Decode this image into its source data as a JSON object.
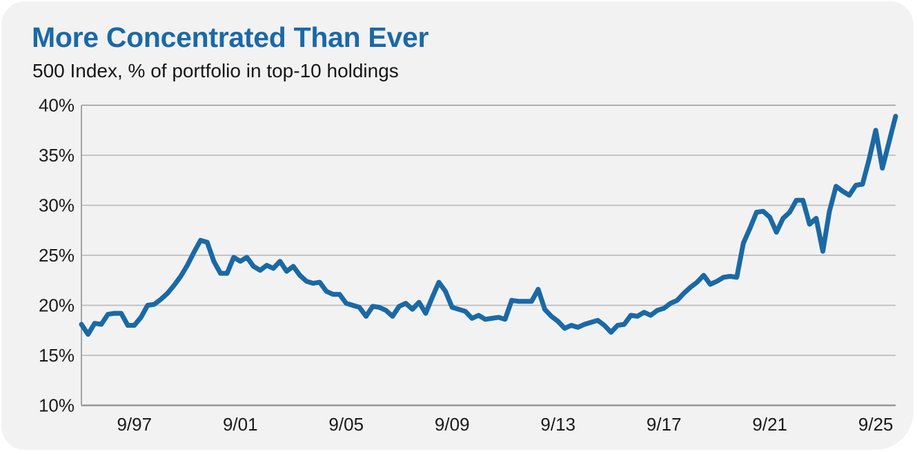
{
  "page": {
    "background": "#ffffff",
    "card_background": "#f2f2f3"
  },
  "chart_data": {
    "type": "line",
    "title": "More Concentrated Than Ever",
    "subtitle": "500 Index, % of portfolio in top-10 holdings",
    "title_color": "#1a69a5",
    "line_color": "#1a69a5",
    "grid_color": "#b5b5b8",
    "axis_color": "#97979a",
    "border_color": "#a3a3a6",
    "label_color": "#1a1a1a",
    "grid": "horizontal",
    "legend": "none",
    "line_width": 7,
    "ylim": [
      10,
      40
    ],
    "yticks": [
      {
        "value": 40,
        "label": "40%"
      },
      {
        "value": 35,
        "label": "35%"
      },
      {
        "value": 30,
        "label": "30%"
      },
      {
        "value": 25,
        "label": "25%"
      },
      {
        "value": 20,
        "label": "20%"
      },
      {
        "value": 15,
        "label": "15%"
      },
      {
        "value": 10,
        "label": "10%"
      }
    ],
    "xlim": [
      1995.75,
      2026.5
    ],
    "xticks": [
      {
        "year": 1997.75,
        "label": "9/97"
      },
      {
        "year": 2001.75,
        "label": "9/01"
      },
      {
        "year": 2005.75,
        "label": "9/05"
      },
      {
        "year": 2009.75,
        "label": "9/09"
      },
      {
        "year": 2013.75,
        "label": "9/13"
      },
      {
        "year": 2017.75,
        "label": "9/17"
      },
      {
        "year": 2021.75,
        "label": "9/21"
      },
      {
        "year": 2025.75,
        "label": "9/25"
      }
    ],
    "series": [
      {
        "name": "% of portfolio in top-10 holdings",
        "frequency": "quarterly",
        "points": [
          [
            1995.75,
            18.1
          ],
          [
            1996.0,
            17.1
          ],
          [
            1996.25,
            18.2
          ],
          [
            1996.5,
            18.1
          ],
          [
            1996.75,
            19.1
          ],
          [
            1997.0,
            19.2
          ],
          [
            1997.25,
            19.2
          ],
          [
            1997.5,
            18.0
          ],
          [
            1997.75,
            18.0
          ],
          [
            1998.0,
            18.8
          ],
          [
            1998.25,
            20.0
          ],
          [
            1998.5,
            20.1
          ],
          [
            1998.75,
            20.6
          ],
          [
            1999.0,
            21.2
          ],
          [
            1999.25,
            22.0
          ],
          [
            1999.5,
            22.9
          ],
          [
            1999.75,
            24.0
          ],
          [
            2000.0,
            25.3
          ],
          [
            2000.25,
            26.5
          ],
          [
            2000.5,
            26.3
          ],
          [
            2000.75,
            24.4
          ],
          [
            2001.0,
            23.2
          ],
          [
            2001.25,
            23.2
          ],
          [
            2001.5,
            24.8
          ],
          [
            2001.75,
            24.4
          ],
          [
            2002.0,
            24.8
          ],
          [
            2002.25,
            23.9
          ],
          [
            2002.5,
            23.5
          ],
          [
            2002.75,
            24.0
          ],
          [
            2003.0,
            23.7
          ],
          [
            2003.25,
            24.4
          ],
          [
            2003.5,
            23.4
          ],
          [
            2003.75,
            23.9
          ],
          [
            2004.0,
            23.0
          ],
          [
            2004.25,
            22.4
          ],
          [
            2004.5,
            22.2
          ],
          [
            2004.75,
            22.3
          ],
          [
            2005.0,
            21.4
          ],
          [
            2005.25,
            21.1
          ],
          [
            2005.5,
            21.1
          ],
          [
            2005.75,
            20.2
          ],
          [
            2006.0,
            20.0
          ],
          [
            2006.25,
            19.8
          ],
          [
            2006.5,
            18.9
          ],
          [
            2006.75,
            19.9
          ],
          [
            2007.0,
            19.8
          ],
          [
            2007.25,
            19.5
          ],
          [
            2007.5,
            18.9
          ],
          [
            2007.75,
            19.9
          ],
          [
            2008.0,
            20.2
          ],
          [
            2008.25,
            19.6
          ],
          [
            2008.5,
            20.3
          ],
          [
            2008.75,
            19.2
          ],
          [
            2009.0,
            20.8
          ],
          [
            2009.25,
            22.3
          ],
          [
            2009.5,
            21.4
          ],
          [
            2009.75,
            19.8
          ],
          [
            2010.0,
            19.6
          ],
          [
            2010.25,
            19.4
          ],
          [
            2010.5,
            18.7
          ],
          [
            2010.75,
            19.0
          ],
          [
            2011.0,
            18.6
          ],
          [
            2011.25,
            18.7
          ],
          [
            2011.5,
            18.8
          ],
          [
            2011.75,
            18.6
          ],
          [
            2012.0,
            20.5
          ],
          [
            2012.25,
            20.4
          ],
          [
            2012.5,
            20.4
          ],
          [
            2012.75,
            20.4
          ],
          [
            2013.0,
            21.6
          ],
          [
            2013.25,
            19.6
          ],
          [
            2013.5,
            18.9
          ],
          [
            2013.75,
            18.4
          ],
          [
            2014.0,
            17.7
          ],
          [
            2014.25,
            18.0
          ],
          [
            2014.5,
            17.8
          ],
          [
            2014.75,
            18.1
          ],
          [
            2015.0,
            18.3
          ],
          [
            2015.25,
            18.5
          ],
          [
            2015.5,
            18.0
          ],
          [
            2015.75,
            17.3
          ],
          [
            2016.0,
            18.0
          ],
          [
            2016.25,
            18.1
          ],
          [
            2016.5,
            19.0
          ],
          [
            2016.75,
            18.9
          ],
          [
            2017.0,
            19.3
          ],
          [
            2017.25,
            19.0
          ],
          [
            2017.5,
            19.5
          ],
          [
            2017.75,
            19.7
          ],
          [
            2018.0,
            20.2
          ],
          [
            2018.25,
            20.5
          ],
          [
            2018.5,
            21.2
          ],
          [
            2018.75,
            21.8
          ],
          [
            2019.0,
            22.3
          ],
          [
            2019.25,
            23.0
          ],
          [
            2019.5,
            22.1
          ],
          [
            2019.75,
            22.4
          ],
          [
            2020.0,
            22.8
          ],
          [
            2020.25,
            22.9
          ],
          [
            2020.5,
            22.8
          ],
          [
            2020.75,
            26.2
          ],
          [
            2021.0,
            27.7
          ],
          [
            2021.25,
            29.3
          ],
          [
            2021.5,
            29.4
          ],
          [
            2021.75,
            28.8
          ],
          [
            2022.0,
            27.3
          ],
          [
            2022.25,
            28.7
          ],
          [
            2022.5,
            29.3
          ],
          [
            2022.75,
            30.5
          ],
          [
            2023.0,
            30.5
          ],
          [
            2023.25,
            28.1
          ],
          [
            2023.5,
            28.7
          ],
          [
            2023.75,
            25.4
          ],
          [
            2024.0,
            29.4
          ],
          [
            2024.25,
            31.9
          ],
          [
            2024.5,
            31.4
          ],
          [
            2024.75,
            31.0
          ],
          [
            2025.0,
            32.0
          ],
          [
            2025.25,
            32.1
          ],
          [
            2025.5,
            34.6
          ],
          [
            2025.75,
            37.5
          ],
          [
            2026.0,
            33.7
          ],
          [
            2026.5,
            38.9
          ]
        ]
      }
    ]
  }
}
